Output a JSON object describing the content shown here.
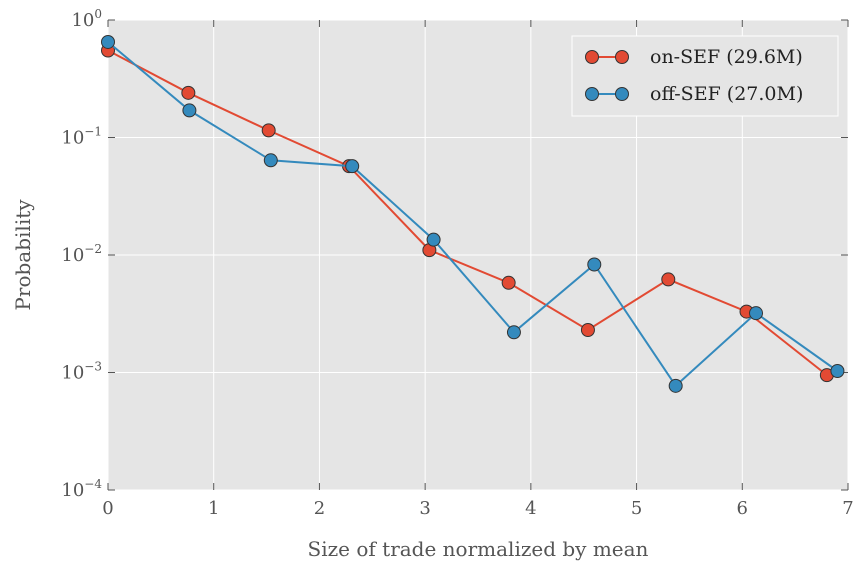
{
  "chart_data": {
    "type": "line",
    "xlabel": "Size of trade normalized by mean",
    "ylabel": "Probability",
    "xlim": [
      0,
      7
    ],
    "ylim": [
      0.0001,
      1
    ],
    "yscale": "log",
    "xticks": [
      {
        "value": 0,
        "label": "0"
      },
      {
        "value": 1,
        "label": "1"
      },
      {
        "value": 2,
        "label": "2"
      },
      {
        "value": 3,
        "label": "3"
      },
      {
        "value": 4,
        "label": "4"
      },
      {
        "value": 5,
        "label": "5"
      },
      {
        "value": 6,
        "label": "6"
      },
      {
        "value": 7,
        "label": "7"
      }
    ],
    "yticks": [
      {
        "value": 1,
        "base": "10",
        "exp": "0"
      },
      {
        "value": 0.1,
        "base": "10",
        "exp": "−1"
      },
      {
        "value": 0.01,
        "base": "10",
        "exp": "−2"
      },
      {
        "value": 0.001,
        "base": "10",
        "exp": "−3"
      },
      {
        "value": 0.0001,
        "base": "10",
        "exp": "−4"
      }
    ],
    "grid": true,
    "legend_position": "top-right",
    "series": [
      {
        "name": "on-SEF (29.6M)",
        "color": "#e24a33",
        "x": [
          0.0,
          0.76,
          1.52,
          2.28,
          3.04,
          3.79,
          4.54,
          5.3,
          6.04,
          6.8
        ],
        "y": [
          0.55,
          0.24,
          0.115,
          0.057,
          0.011,
          0.0058,
          0.0023,
          0.0062,
          0.0033,
          0.00095
        ]
      },
      {
        "name": "off-SEF (27.0M)",
        "color": "#348abd",
        "x": [
          0.0,
          0.77,
          1.54,
          2.31,
          3.08,
          3.84,
          4.6,
          5.37,
          6.13,
          6.9
        ],
        "y": [
          0.65,
          0.17,
          0.064,
          0.057,
          0.0135,
          0.0022,
          0.0083,
          0.00077,
          0.0032,
          0.00103
        ]
      }
    ]
  }
}
